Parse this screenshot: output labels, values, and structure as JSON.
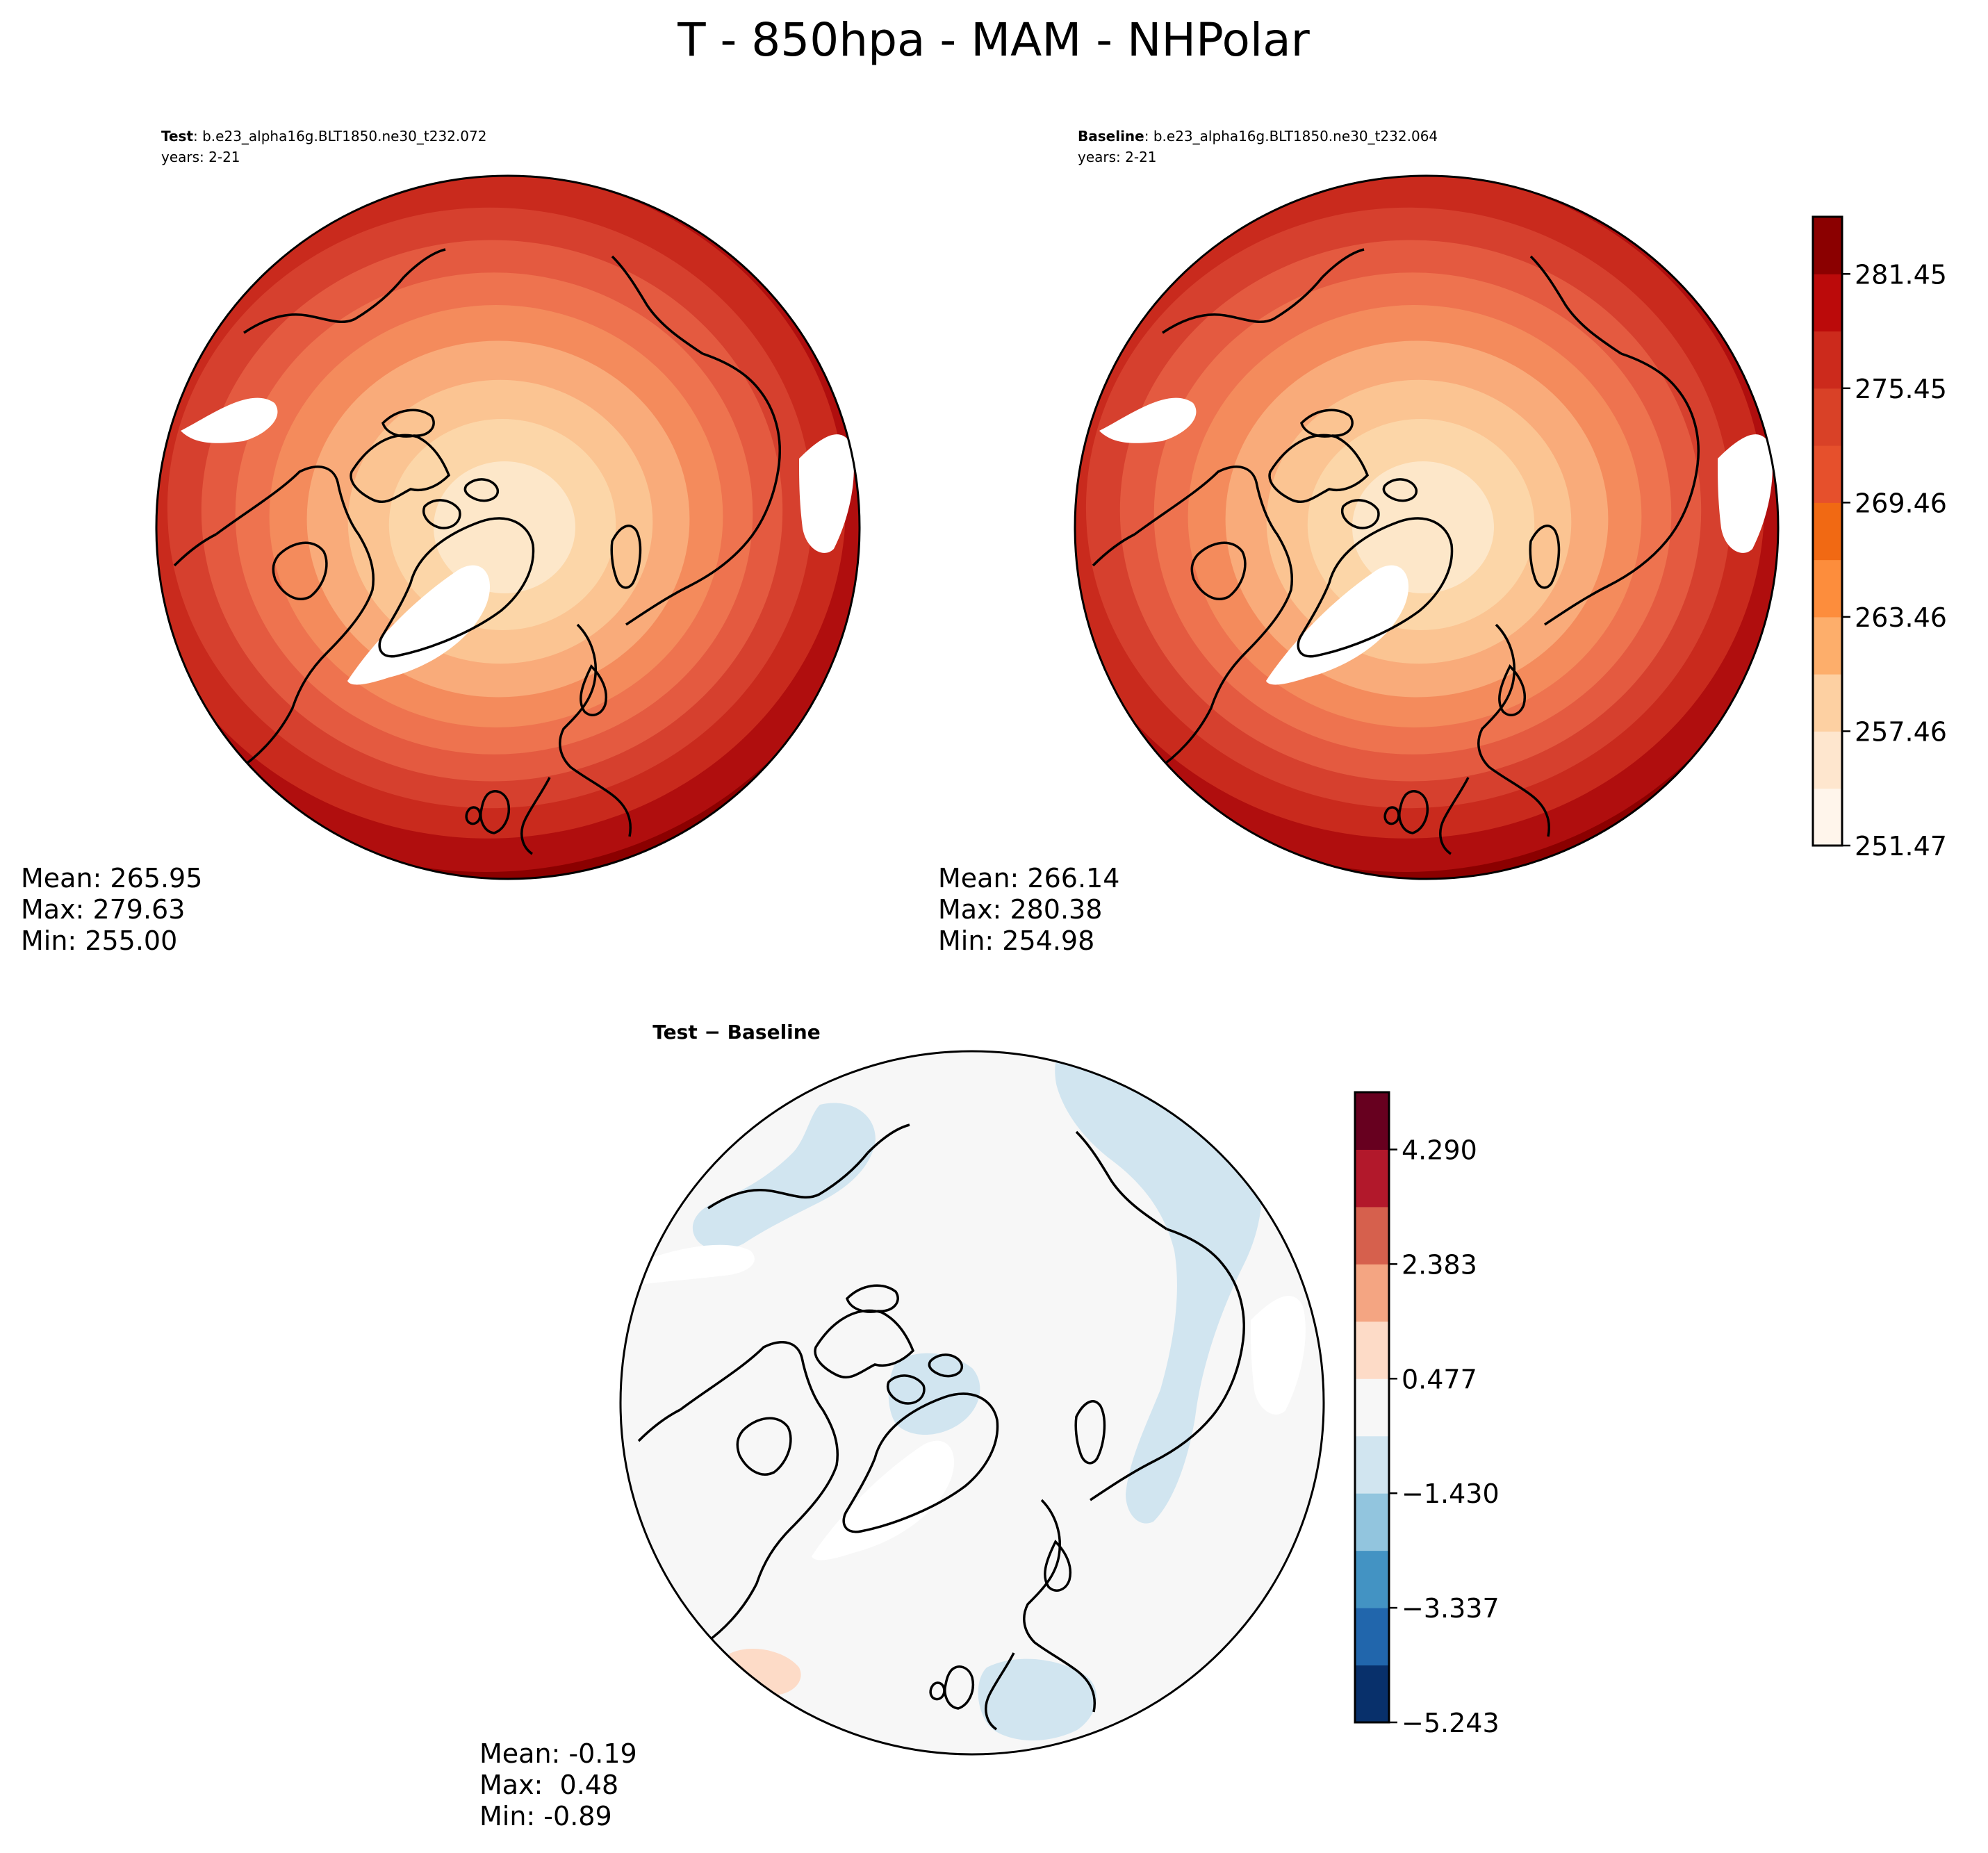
{
  "figure": {
    "title": "T - 850hpa - MAM - NHPolar"
  },
  "panels": [
    {
      "id": "test",
      "header_bold": "Test",
      "header_rest": ": b.e23_alpha16g.BLT1850.ne30_t232.072",
      "years": "years: 2-21",
      "stats": [
        "Mean: 265.95",
        "Max: 279.63",
        "Min: 255.00"
      ]
    },
    {
      "id": "baseline",
      "header_bold": "Baseline",
      "header_rest": ": b.e23_alpha16g.BLT1850.ne30_t232.064",
      "years": "years: 2-21",
      "stats": [
        "Mean: 266.14",
        "Max: 280.38",
        "Min: 254.98"
      ]
    },
    {
      "id": "difference",
      "header_bold": "Test − Baseline",
      "stats": [
        "Mean: -0.19",
        "Max:  0.48",
        "Min: -0.89"
      ]
    }
  ],
  "colorbars": {
    "absolute": {
      "colors": [
        "#fff5eb",
        "#fee6ce",
        "#fdd0a2",
        "#fdae6b",
        "#fd8d3c",
        "#f16913",
        "#e6502c",
        "#d94127",
        "#cc2a1c",
        "#bb0a0a",
        "#8b0000"
      ],
      "fill_colors": [
        "#fde7c9",
        "#fcd6a8",
        "#fbc492",
        "#f9ab7a",
        "#f48b5c",
        "#ee734f",
        "#e45a40",
        "#d6402e",
        "#c92a1d",
        "#b00e0e",
        "#8b0000"
      ],
      "tick_labels": [
        "281.45",
        "275.45",
        "269.46",
        "263.46",
        "257.46",
        "251.47"
      ]
    },
    "difference": {
      "colors": [
        "#08306b",
        "#2166ac",
        "#4393c3",
        "#92c5de",
        "#d1e5f0",
        "#f7f7f7",
        "#fddbc7",
        "#f4a582",
        "#d6604d",
        "#b2182b",
        "#67001f"
      ],
      "tick_labels": [
        "4.290",
        "2.383",
        "0.477",
        "−1.430",
        "−3.337",
        "−5.243"
      ]
    }
  }
}
